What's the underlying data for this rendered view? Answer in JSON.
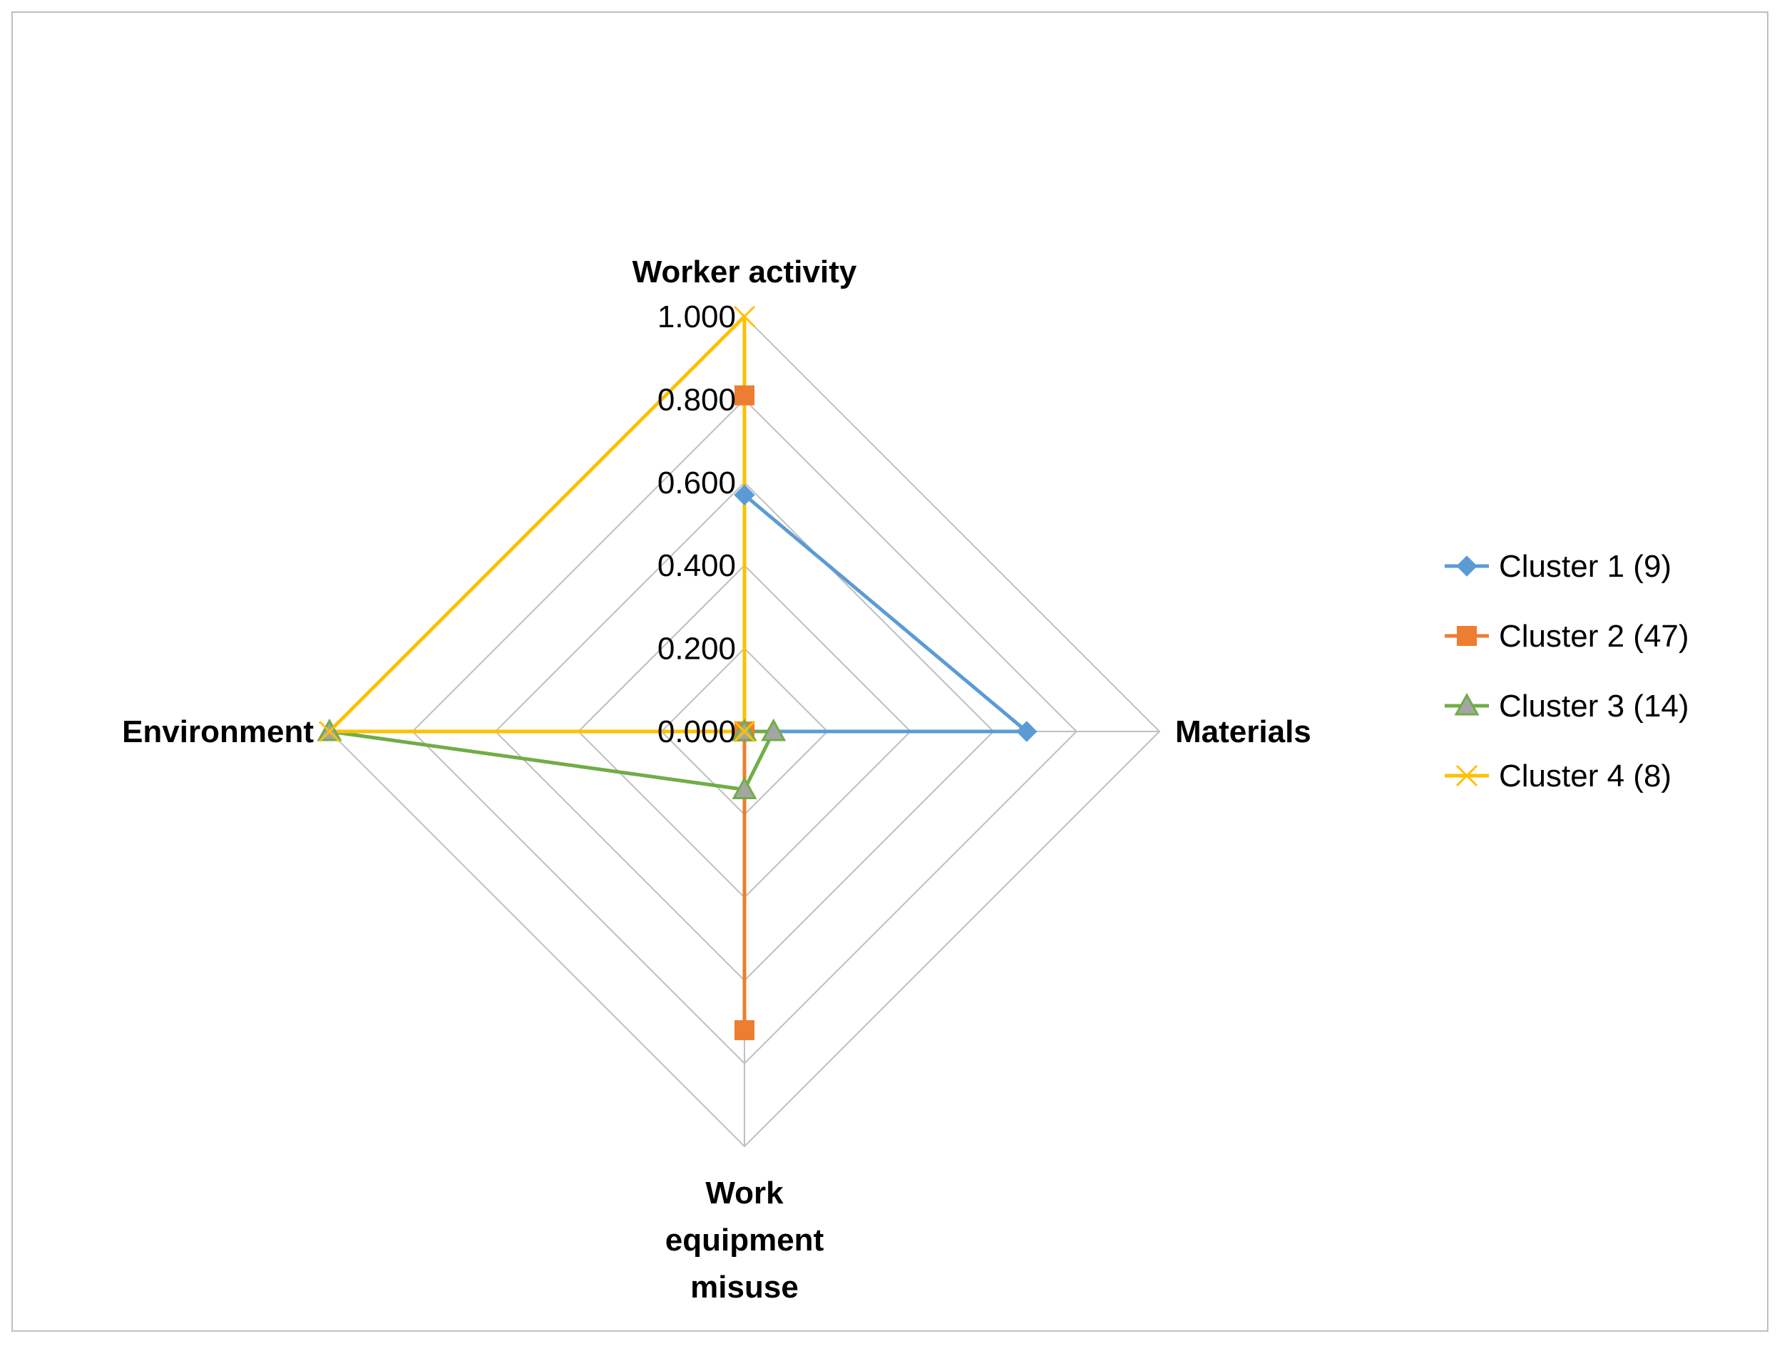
{
  "chart_data": {
    "type": "radar",
    "axes": [
      "Worker activity",
      "Materials",
      "Work equipment misuse",
      "Environment"
    ],
    "axis_label_lines": [
      [
        "Worker activity"
      ],
      [
        "Materials"
      ],
      [
        "Work",
        "equipment",
        "misuse"
      ],
      [
        "Environment"
      ]
    ],
    "ticks": [
      "0.000",
      "0.200",
      "0.400",
      "0.600",
      "0.800",
      "1.000"
    ],
    "range": [
      0,
      1
    ],
    "gridlines": true,
    "legend_position": "right",
    "series": [
      {
        "name": "Cluster 1 (9)",
        "color": "#5b9bd5",
        "marker": "diamond",
        "values": [
          0.57,
          0.68,
          0.0,
          0.0
        ]
      },
      {
        "name": "Cluster 2 (47)",
        "color": "#ed7d31",
        "marker": "square",
        "values": [
          0.81,
          0.0,
          0.72,
          0.0
        ]
      },
      {
        "name": "Cluster 3 (14)",
        "color": "#70ad47",
        "marker": "triangle",
        "values": [
          0.0,
          0.07,
          0.14,
          1.0
        ]
      },
      {
        "name": "Cluster 4 (8)",
        "color": "#ffc000",
        "marker": "x",
        "values": [
          1.0,
          0.0,
          0.0,
          1.0
        ]
      }
    ]
  }
}
